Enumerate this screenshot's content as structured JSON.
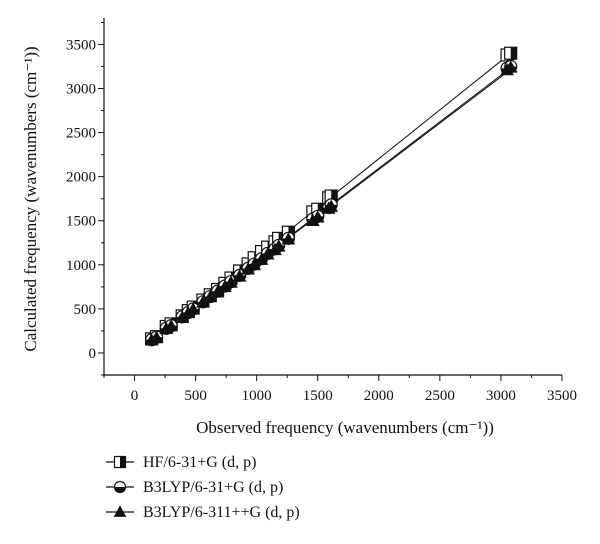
{
  "chart_data": {
    "type": "scatter",
    "xlabel": "Observed frequency (wavenumbers (cm⁻¹))",
    "ylabel": "Calculated frequency (wavenumbers (cm⁻¹))",
    "xlim": [
      -250,
      3500
    ],
    "ylim": [
      -250,
      3800
    ],
    "xticks": [
      0,
      500,
      1000,
      1500,
      2000,
      2500,
      3000,
      3500
    ],
    "yticks": [
      0,
      500,
      1000,
      1500,
      2000,
      2500,
      3000,
      3500
    ],
    "xtick_labels": [
      "0",
      "500",
      "1000",
      "1500",
      "2000",
      "2500",
      "3000",
      "3500"
    ],
    "ytick_labels": [
      "0",
      "500",
      "1000",
      "1500",
      "2000",
      "2500",
      "3000",
      "3500"
    ],
    "grid": false,
    "legend_position": "bottom",
    "series": [
      {
        "name": "HF/6-31+G (d, p)",
        "marker": "square-half",
        "fit_line": true,
        "points": [
          [
            140,
            160
          ],
          [
            180,
            185
          ],
          [
            260,
            300
          ],
          [
            300,
            330
          ],
          [
            390,
            420
          ],
          [
            440,
            480
          ],
          [
            480,
            520
          ],
          [
            560,
            600
          ],
          [
            620,
            660
          ],
          [
            680,
            720
          ],
          [
            740,
            790
          ],
          [
            790,
            850
          ],
          [
            860,
            930
          ],
          [
            930,
            1010
          ],
          [
            980,
            1080
          ],
          [
            1040,
            1150
          ],
          [
            1090,
            1200
          ],
          [
            1150,
            1260
          ],
          [
            1180,
            1300
          ],
          [
            1260,
            1370
          ],
          [
            1460,
            1600
          ],
          [
            1500,
            1630
          ],
          [
            1590,
            1760
          ],
          [
            1610,
            1780
          ],
          [
            3050,
            3380
          ],
          [
            3080,
            3400
          ]
        ]
      },
      {
        "name": "B3LYP/6-31+G (d, p)",
        "marker": "circle-half",
        "fit_line": true,
        "points": [
          [
            140,
            150
          ],
          [
            180,
            180
          ],
          [
            260,
            280
          ],
          [
            300,
            310
          ],
          [
            390,
            410
          ],
          [
            440,
            460
          ],
          [
            480,
            500
          ],
          [
            560,
            580
          ],
          [
            620,
            640
          ],
          [
            680,
            700
          ],
          [
            740,
            760
          ],
          [
            790,
            810
          ],
          [
            860,
            880
          ],
          [
            930,
            960
          ],
          [
            980,
            1010
          ],
          [
            1040,
            1070
          ],
          [
            1090,
            1130
          ],
          [
            1150,
            1180
          ],
          [
            1180,
            1220
          ],
          [
            1260,
            1300
          ],
          [
            1460,
            1520
          ],
          [
            1500,
            1550
          ],
          [
            1590,
            1650
          ],
          [
            1610,
            1680
          ],
          [
            3050,
            3230
          ],
          [
            3080,
            3250
          ]
        ]
      },
      {
        "name": "B3LYP/6-311++G (d, p)",
        "marker": "triangle",
        "fit_line": true,
        "points": [
          [
            140,
            145
          ],
          [
            180,
            175
          ],
          [
            260,
            275
          ],
          [
            300,
            305
          ],
          [
            390,
            400
          ],
          [
            440,
            455
          ],
          [
            480,
            495
          ],
          [
            560,
            575
          ],
          [
            620,
            635
          ],
          [
            680,
            690
          ],
          [
            740,
            750
          ],
          [
            790,
            800
          ],
          [
            860,
            870
          ],
          [
            930,
            950
          ],
          [
            980,
            1000
          ],
          [
            1040,
            1060
          ],
          [
            1090,
            1120
          ],
          [
            1150,
            1170
          ],
          [
            1180,
            1210
          ],
          [
            1260,
            1290
          ],
          [
            1460,
            1500
          ],
          [
            1500,
            1540
          ],
          [
            1590,
            1640
          ],
          [
            1610,
            1660
          ],
          [
            3050,
            3210
          ],
          [
            3080,
            3240
          ]
        ]
      }
    ]
  }
}
